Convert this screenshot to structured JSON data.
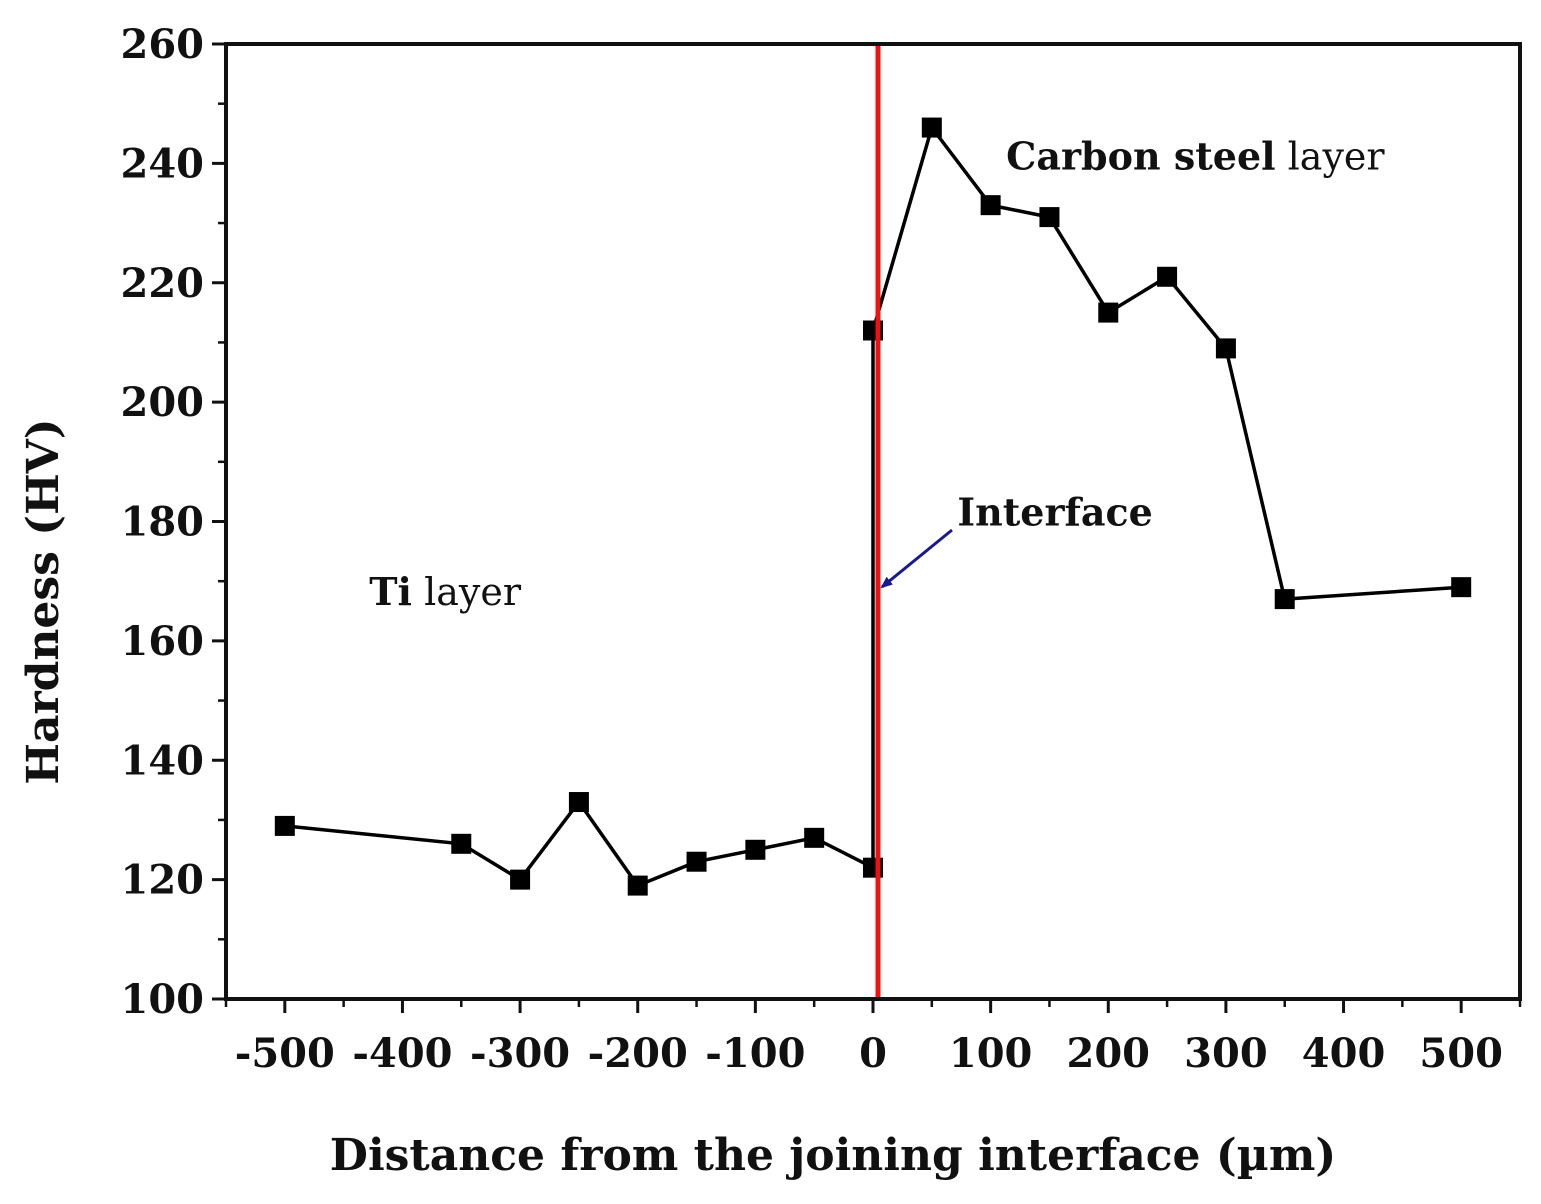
{
  "chart_data": {
    "type": "line",
    "title": "",
    "xlabel": "Distance from the joining interface (µm)",
    "ylabel": "Hardness (HV)",
    "xlim": [
      -550,
      550
    ],
    "ylim": [
      100,
      260
    ],
    "xticks": [
      -500,
      -400,
      -300,
      -200,
      -100,
      0,
      100,
      200,
      300,
      400,
      500
    ],
    "xtick_labels": [
      "-500",
      "-400",
      "-300",
      "-200",
      "-100",
      "0",
      "100",
      "200",
      "300",
      "400",
      "500"
    ],
    "yticks": [
      100,
      120,
      140,
      160,
      180,
      200,
      220,
      240,
      260
    ],
    "ytick_labels": [
      "100",
      "120",
      "140",
      "160",
      "180",
      "200",
      "220",
      "240",
      "260"
    ],
    "series": [
      {
        "name": "Hardness",
        "marker": "square",
        "x": [
          -500,
          -350,
          -300,
          -250,
          -200,
          -150,
          -100,
          -50,
          0,
          0,
          50,
          100,
          150,
          200,
          250,
          300,
          350,
          500
        ],
        "y": [
          129,
          126,
          120,
          133,
          119,
          123,
          125,
          127,
          122,
          212,
          246,
          233,
          231,
          215,
          221,
          209,
          167,
          169
        ]
      }
    ],
    "interface_line": {
      "x": 0
    },
    "annotations": {
      "ti": {
        "bold": "Ti",
        "normal": " layer",
        "x": -350,
        "y": 168
      },
      "carbon": {
        "bold": "Carbon steel",
        "normal": " layer",
        "x": 120,
        "y": 241
      },
      "interface": {
        "text": "Interface",
        "x": 70,
        "y": 183
      }
    },
    "colors": {
      "line": "#000000",
      "interface": "#ee1111",
      "arrow": "#1a1a8c"
    }
  }
}
